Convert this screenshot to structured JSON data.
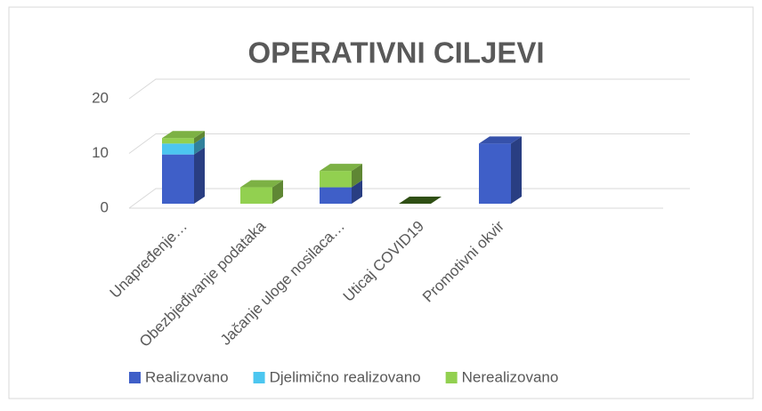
{
  "chart_data": {
    "type": "bar3d_stacked",
    "title": "OPERATIVNI CILJEVI",
    "categories": [
      "Unapređenje…",
      "Obezbjeđivanje podataka",
      "Jačanje uloge nosilaca…",
      "Uticaj COVID19",
      "Promotivni okvir"
    ],
    "series": [
      {
        "name": "Realizovano",
        "color": "#3f5fc8",
        "values": [
          9,
          0,
          3,
          0,
          11
        ]
      },
      {
        "name": "Djelimično realizovano",
        "color": "#4cc6f0",
        "values": [
          2,
          0,
          0,
          0,
          0
        ]
      },
      {
        "name": "Nerealizovano",
        "color": "#92d050",
        "values": [
          1,
          3,
          3,
          0,
          0
        ]
      }
    ],
    "ylim": [
      0,
      20
    ],
    "yticks": [
      0,
      10,
      20
    ],
    "grid": true
  }
}
